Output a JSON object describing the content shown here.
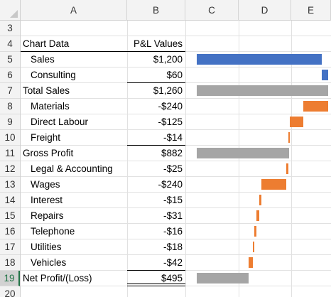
{
  "columns": [
    "A",
    "B",
    "C",
    "D",
    "E"
  ],
  "header": {
    "label": "Chart Data",
    "value": "P&L Values"
  },
  "rows": [
    {
      "row": "3",
      "label": "",
      "value": "",
      "indent": false
    },
    {
      "row": "4",
      "label": "Chart Data",
      "value": "P&L Values",
      "indent": false
    },
    {
      "row": "5",
      "label": "Sales",
      "value": "$1,200",
      "indent": true
    },
    {
      "row": "6",
      "label": "Consulting",
      "value": "$60",
      "indent": true
    },
    {
      "row": "7",
      "label": "Total Sales",
      "value": "$1,260",
      "indent": false
    },
    {
      "row": "8",
      "label": "Materials",
      "value": "-$240",
      "indent": true
    },
    {
      "row": "9",
      "label": "Direct Labour",
      "value": "-$125",
      "indent": true
    },
    {
      "row": "10",
      "label": "Freight",
      "value": "-$14",
      "indent": true
    },
    {
      "row": "11",
      "label": "Gross Profit",
      "value": "$882",
      "indent": false
    },
    {
      "row": "12",
      "label": "Legal & Accounting",
      "value": "-$25",
      "indent": true
    },
    {
      "row": "13",
      "label": "Wages",
      "value": "-$240",
      "indent": true
    },
    {
      "row": "14",
      "label": "Interest",
      "value": "-$15",
      "indent": true
    },
    {
      "row": "15",
      "label": "Repairs",
      "value": "-$31",
      "indent": true
    },
    {
      "row": "16",
      "label": "Telephone",
      "value": "-$16",
      "indent": true
    },
    {
      "row": "17",
      "label": "Utilities",
      "value": "-$18",
      "indent": true
    },
    {
      "row": "18",
      "label": "Vehicles",
      "value": "-$42",
      "indent": true
    },
    {
      "row": "19",
      "label": "Net Profit/(Loss)",
      "value": "$495",
      "indent": false
    },
    {
      "row": "20",
      "label": "",
      "value": "",
      "indent": false
    }
  ],
  "selected_row": "19",
  "chart_data": {
    "type": "bar",
    "categories": [
      "Sales",
      "Consulting",
      "Total Sales",
      "Materials",
      "Direct Labour",
      "Freight",
      "Gross Profit",
      "Legal & Accounting",
      "Wages",
      "Interest",
      "Repairs",
      "Telephone",
      "Utilities",
      "Vehicles",
      "Net Profit/(Loss)"
    ],
    "bars": [
      {
        "start": 0,
        "end": 1200,
        "kind": "increase"
      },
      {
        "start": 1200,
        "end": 1260,
        "kind": "increase"
      },
      {
        "start": 0,
        "end": 1260,
        "kind": "total"
      },
      {
        "start": 1020,
        "end": 1260,
        "kind": "decrease"
      },
      {
        "start": 895,
        "end": 1020,
        "kind": "decrease"
      },
      {
        "start": 881,
        "end": 895,
        "kind": "decrease"
      },
      {
        "start": 0,
        "end": 882,
        "kind": "total"
      },
      {
        "start": 857,
        "end": 882,
        "kind": "decrease"
      },
      {
        "start": 617,
        "end": 857,
        "kind": "decrease"
      },
      {
        "start": 602,
        "end": 617,
        "kind": "decrease"
      },
      {
        "start": 571,
        "end": 602,
        "kind": "decrease"
      },
      {
        "start": 555,
        "end": 571,
        "kind": "decrease"
      },
      {
        "start": 537,
        "end": 555,
        "kind": "decrease"
      },
      {
        "start": 495,
        "end": 537,
        "kind": "decrease"
      },
      {
        "start": 0,
        "end": 495,
        "kind": "total"
      }
    ],
    "xlim": [
      0,
      1260
    ],
    "colors": {
      "increase": "#4472c4",
      "decrease": "#ed7d31",
      "total": "#a5a5a5"
    },
    "title": "",
    "xlabel": "",
    "ylabel": "",
    "grid": false,
    "legend": "none"
  }
}
